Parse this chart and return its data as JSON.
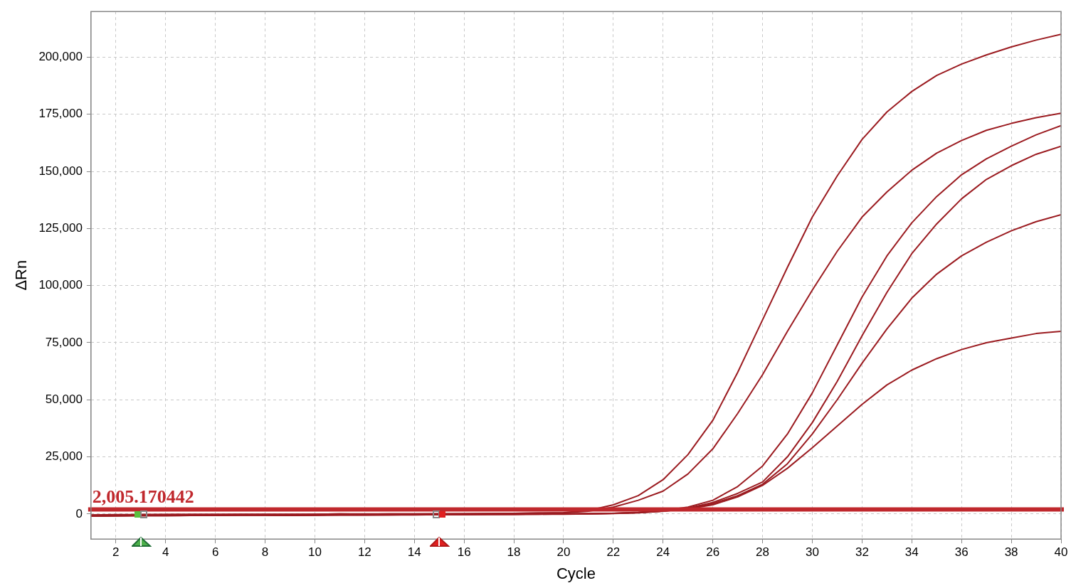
{
  "chart_data": {
    "type": "line",
    "xlabel": "Cycle",
    "ylabel": "ΔRn",
    "x": [
      1,
      2,
      3,
      4,
      5,
      6,
      7,
      8,
      9,
      10,
      11,
      12,
      13,
      14,
      15,
      16,
      17,
      18,
      19,
      20,
      21,
      22,
      23,
      24,
      25,
      26,
      27,
      28,
      29,
      30,
      31,
      32,
      33,
      34,
      35,
      36,
      37,
      38,
      39,
      40
    ],
    "series": [
      {
        "color": "#9b1b20",
        "values": [
          -500,
          -400,
          -300,
          -300,
          -200,
          -200,
          -200,
          -100,
          -200,
          -100,
          0,
          -100,
          0,
          0,
          0,
          100,
          200,
          300,
          400,
          600,
          1500,
          4000,
          8000,
          15000,
          26000,
          41000,
          62000,
          85000,
          108000,
          130000,
          148000,
          164000,
          176000,
          185000,
          192000,
          197000,
          201000,
          204500,
          207500,
          210000
        ]
      },
      {
        "color": "#9b1b20",
        "values": [
          -400,
          -300,
          -300,
          -200,
          -200,
          -200,
          -100,
          -200,
          -100,
          -100,
          0,
          0,
          0,
          0,
          100,
          100,
          200,
          300,
          400,
          500,
          1200,
          3000,
          6000,
          10000,
          17500,
          28500,
          44000,
          61000,
          80000,
          98000,
          115000,
          130000,
          141000,
          150500,
          158000,
          163500,
          168000,
          171000,
          173500,
          175500
        ]
      },
      {
        "color": "#9b1b20",
        "values": [
          -800,
          -700,
          -600,
          -600,
          -500,
          -500,
          -400,
          -400,
          -500,
          -400,
          -300,
          -300,
          -300,
          -200,
          -200,
          -200,
          -100,
          -100,
          0,
          0,
          100,
          300,
          700,
          1500,
          3000,
          6000,
          12000,
          21000,
          35000,
          53000,
          74000,
          95000,
          113000,
          127500,
          139000,
          148500,
          155500,
          161000,
          166000,
          170000
        ]
      },
      {
        "color": "#9b1b20",
        "values": [
          -900,
          -800,
          -700,
          -700,
          -600,
          -600,
          -500,
          -500,
          -600,
          -500,
          -400,
          -400,
          -400,
          -300,
          -300,
          -200,
          -200,
          -100,
          -100,
          0,
          100,
          300,
          600,
          1300,
          2500,
          5000,
          9000,
          14000,
          25000,
          40000,
          58000,
          78000,
          97000,
          114000,
          127000,
          138000,
          146500,
          152500,
          157500,
          161000
        ]
      },
      {
        "color": "#9b1b20",
        "values": [
          -1000,
          -900,
          -800,
          -800,
          -700,
          -700,
          -600,
          -600,
          -700,
          -600,
          -500,
          -500,
          -400,
          -400,
          -300,
          -300,
          -200,
          -200,
          -100,
          -100,
          0,
          200,
          500,
          1200,
          2300,
          4500,
          8000,
          13000,
          22000,
          35000,
          50000,
          66000,
          81000,
          94500,
          105000,
          113000,
          119000,
          124000,
          128000,
          131000
        ]
      },
      {
        "color": "#9b1b20",
        "values": [
          -700,
          -600,
          -600,
          -500,
          -500,
          -400,
          -400,
          -400,
          -500,
          -400,
          -300,
          -300,
          -300,
          -200,
          -200,
          -200,
          -100,
          -100,
          0,
          0,
          100,
          300,
          600,
          1200,
          2200,
          4000,
          7500,
          12500,
          20000,
          29000,
          38500,
          48000,
          56500,
          63000,
          68000,
          72000,
          75000,
          77000,
          79000,
          80000
        ]
      }
    ],
    "ref_lines": [
      {
        "axis": "y",
        "value": 2005.170442,
        "label": "2,005.170442",
        "color": "#c0282d"
      }
    ],
    "xlim": [
      1,
      40
    ],
    "xticks": [
      2,
      4,
      6,
      8,
      10,
      12,
      14,
      16,
      18,
      20,
      22,
      24,
      26,
      28,
      30,
      32,
      34,
      36,
      38,
      40
    ],
    "ylim": [
      -11000,
      220000
    ],
    "yticks": [
      {
        "value": 0,
        "label": "0"
      },
      {
        "value": 25000,
        "label": "25,000"
      },
      {
        "value": 50000,
        "label": "50,000"
      },
      {
        "value": 75000,
        "label": "75,000"
      },
      {
        "value": 100000,
        "label": "100,000"
      },
      {
        "value": 125000,
        "label": "125,000"
      },
      {
        "value": 150000,
        "label": "150,000"
      },
      {
        "value": 175000,
        "label": "175,000"
      },
      {
        "value": 200000,
        "label": "200,000"
      }
    ],
    "grid": true,
    "legend": false,
    "marker": "none",
    "line_style": "solid"
  }
}
